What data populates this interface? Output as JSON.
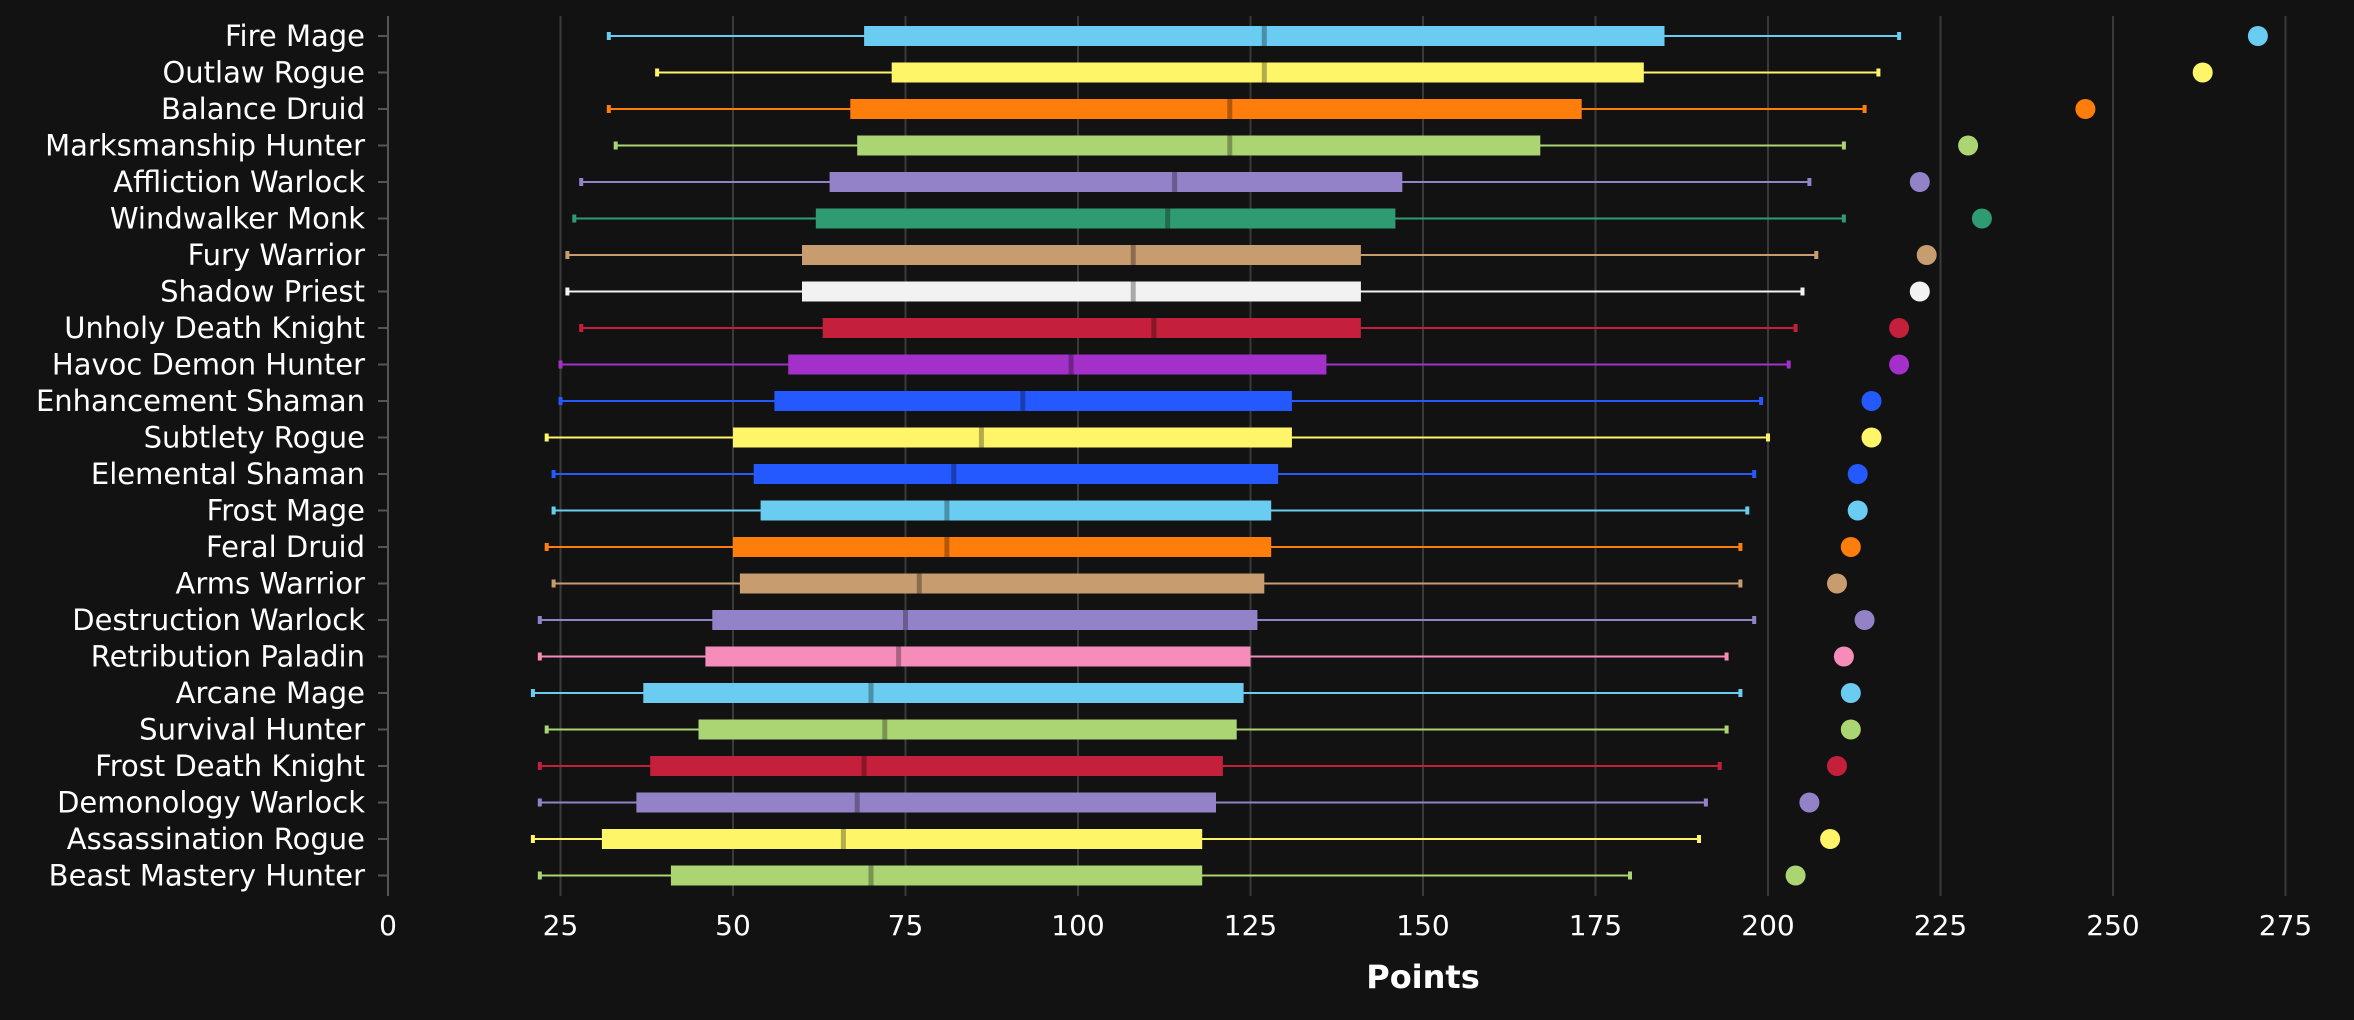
{
  "chart_data": {
    "type": "boxplot",
    "title": "",
    "xlabel": "Points",
    "ylabel": "",
    "xlim": [
      0,
      275
    ],
    "xticks": [
      0,
      25,
      50,
      75,
      100,
      125,
      150,
      175,
      200,
      225,
      250,
      275
    ],
    "grid": true,
    "background": "#121212",
    "series": [
      {
        "name": "Fire Mage",
        "color": "#69ccf0",
        "min": 32,
        "q1": 69,
        "median": 127,
        "q3": 185,
        "max": 219,
        "outlier": 271
      },
      {
        "name": "Outlaw Rogue",
        "color": "#fff569",
        "min": 39,
        "q1": 73,
        "median": 127,
        "q3": 182,
        "max": 216,
        "outlier": 263
      },
      {
        "name": "Balance Druid",
        "color": "#ff7d0a",
        "min": 32,
        "q1": 67,
        "median": 122,
        "q3": 173,
        "max": 214,
        "outlier": 246
      },
      {
        "name": "Marksmanship Hunter",
        "color": "#abd473",
        "min": 33,
        "q1": 68,
        "median": 122,
        "q3": 167,
        "max": 211,
        "outlier": 229
      },
      {
        "name": "Affliction Warlock",
        "color": "#9482c9",
        "min": 28,
        "q1": 64,
        "median": 114,
        "q3": 147,
        "max": 206,
        "outlier": 222
      },
      {
        "name": "Windwalker Monk",
        "color": "#2e9b73",
        "min": 27,
        "q1": 62,
        "median": 113,
        "q3": 146,
        "max": 211,
        "outlier": 231
      },
      {
        "name": "Fury Warrior",
        "color": "#c79c6e",
        "min": 26,
        "q1": 60,
        "median": 108,
        "q3": 141,
        "max": 207,
        "outlier": 223
      },
      {
        "name": "Shadow Priest",
        "color": "#f2f2f2",
        "min": 26,
        "q1": 60,
        "median": 108,
        "q3": 141,
        "max": 205,
        "outlier": 222
      },
      {
        "name": "Unholy Death Knight",
        "color": "#c41f3b",
        "min": 28,
        "q1": 63,
        "median": 111,
        "q3": 141,
        "max": 204,
        "outlier": 219
      },
      {
        "name": "Havoc Demon Hunter",
        "color": "#a330c9",
        "min": 25,
        "q1": 58,
        "median": 99,
        "q3": 136,
        "max": 203,
        "outlier": 219
      },
      {
        "name": "Enhancement Shaman",
        "color": "#2459ff",
        "min": 25,
        "q1": 56,
        "median": 92,
        "q3": 131,
        "max": 199,
        "outlier": 215
      },
      {
        "name": "Subtlety Rogue",
        "color": "#fff569",
        "min": 23,
        "q1": 50,
        "median": 86,
        "q3": 131,
        "max": 200,
        "outlier": 215
      },
      {
        "name": "Elemental Shaman",
        "color": "#2459ff",
        "min": 24,
        "q1": 53,
        "median": 82,
        "q3": 129,
        "max": 198,
        "outlier": 213
      },
      {
        "name": "Frost Mage",
        "color": "#69ccf0",
        "min": 24,
        "q1": 54,
        "median": 81,
        "q3": 128,
        "max": 197,
        "outlier": 213
      },
      {
        "name": "Feral Druid",
        "color": "#ff7d0a",
        "min": 23,
        "q1": 50,
        "median": 81,
        "q3": 128,
        "max": 196,
        "outlier": 212
      },
      {
        "name": "Arms Warrior",
        "color": "#c79c6e",
        "min": 24,
        "q1": 51,
        "median": 77,
        "q3": 127,
        "max": 196,
        "outlier": 210
      },
      {
        "name": "Destruction Warlock",
        "color": "#9482c9",
        "min": 22,
        "q1": 47,
        "median": 75,
        "q3": 126,
        "max": 198,
        "outlier": 214
      },
      {
        "name": "Retribution Paladin",
        "color": "#f58cba",
        "min": 22,
        "q1": 46,
        "median": 74,
        "q3": 125,
        "max": 194,
        "outlier": 211
      },
      {
        "name": "Arcane Mage",
        "color": "#69ccf0",
        "min": 21,
        "q1": 37,
        "median": 70,
        "q3": 124,
        "max": 196,
        "outlier": 212
      },
      {
        "name": "Survival Hunter",
        "color": "#abd473",
        "min": 23,
        "q1": 45,
        "median": 72,
        "q3": 123,
        "max": 194,
        "outlier": 212
      },
      {
        "name": "Frost Death Knight",
        "color": "#c41f3b",
        "min": 22,
        "q1": 38,
        "median": 69,
        "q3": 121,
        "max": 193,
        "outlier": 210
      },
      {
        "name": "Demonology Warlock",
        "color": "#9482c9",
        "min": 22,
        "q1": 36,
        "median": 68,
        "q3": 120,
        "max": 191,
        "outlier": 206
      },
      {
        "name": "Assassination Rogue",
        "color": "#fff569",
        "min": 21,
        "q1": 31,
        "median": 66,
        "q3": 118,
        "max": 190,
        "outlier": 209
      },
      {
        "name": "Beast Mastery Hunter",
        "color": "#abd473",
        "min": 22,
        "q1": 41,
        "median": 70,
        "q3": 118,
        "max": 180,
        "outlier": 204
      }
    ]
  }
}
